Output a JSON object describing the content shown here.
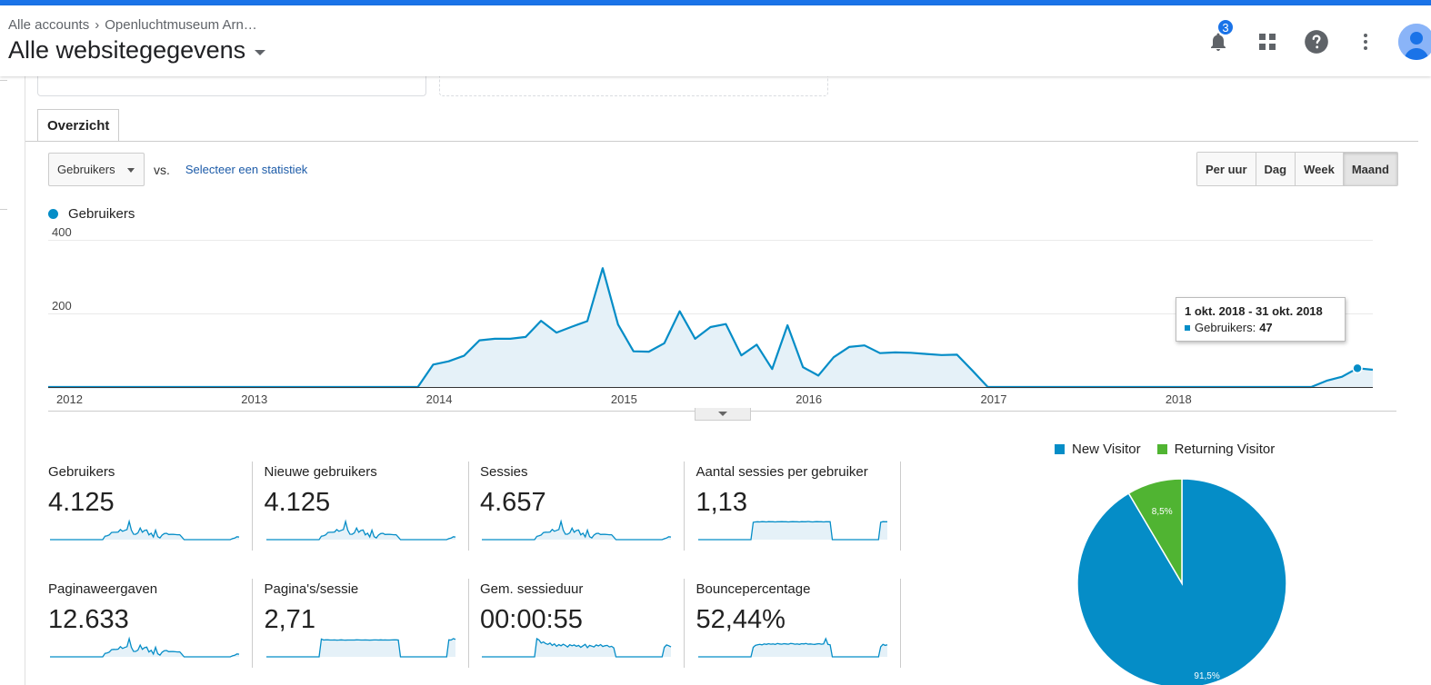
{
  "header": {
    "breadcrumb": [
      "Alle accounts",
      "Openluchtmuseum Arn…"
    ],
    "breadcrumb_sep": "›",
    "view_title": "Alle websitegegevens",
    "notifications_count": "3",
    "icons": [
      "bell-icon",
      "apps-grid-icon",
      "help-icon",
      "more-vert-icon",
      "avatar"
    ]
  },
  "tabs": [
    {
      "label": "Overzicht",
      "active": true
    }
  ],
  "controls": {
    "metric_select": "Gebruikers",
    "vs_label": "vs.",
    "select_metric_link": "Selecteer een statistiek",
    "granularity": [
      {
        "label": "Per uur",
        "active": false
      },
      {
        "label": "Dag",
        "active": false
      },
      {
        "label": "Week",
        "active": false
      },
      {
        "label": "Maand",
        "active": true
      }
    ]
  },
  "chart_data": [
    {
      "type": "area",
      "series": [
        {
          "name": "Gebruikers",
          "color": "#058dc7",
          "values": [
            0,
            0,
            0,
            0,
            0,
            0,
            0,
            0,
            0,
            0,
            0,
            0,
            0,
            0,
            0,
            0,
            0,
            0,
            0,
            0,
            0,
            0,
            0,
            0,
            0,
            61,
            70,
            85,
            127,
            131,
            131,
            136,
            180,
            148,
            164,
            179,
            323,
            170,
            97,
            96,
            119,
            206,
            131,
            163,
            171,
            86,
            115,
            49,
            168,
            54,
            31,
            81,
            109,
            113,
            92,
            94,
            93,
            90,
            87,
            88,
            45,
            0,
            0,
            0,
            0,
            0,
            0,
            0,
            0,
            0,
            0,
            0,
            0,
            0,
            0,
            0,
            0,
            0,
            0,
            0,
            0,
            0,
            0,
            17,
            28,
            51,
            47
          ]
        }
      ],
      "x_start": "2012-01",
      "x_unit": "maand",
      "x_tick_labels": [
        "2012",
        "2013",
        "2014",
        "2015",
        "2016",
        "2017",
        "2018"
      ],
      "y_tick_labels": [
        "400",
        "200"
      ],
      "ylim": [
        0,
        400
      ],
      "legend": "Gebruikers",
      "tooltip": {
        "title": "1 okt. 2018 - 31 okt. 2018",
        "label": "Gebruikers:",
        "value": "47"
      }
    },
    {
      "type": "pie",
      "categories": [
        "New Visitor",
        "Returning Visitor"
      ],
      "values": [
        91.5,
        8.5
      ],
      "value_labels": [
        "91,5%",
        "8,5%"
      ],
      "colors": [
        "#058dc7",
        "#50b432"
      ],
      "legend": "top"
    }
  ],
  "kpis": [
    {
      "label": "Gebruikers",
      "value": "4.125",
      "trend": [
        0,
        0,
        0,
        0,
        0,
        0,
        0,
        0,
        0,
        0,
        0,
        0,
        0,
        0,
        0,
        0,
        0,
        0,
        0,
        0,
        0,
        0,
        0,
        0,
        0,
        61,
        70,
        85,
        127,
        131,
        131,
        136,
        180,
        148,
        164,
        179,
        323,
        170,
        97,
        96,
        119,
        206,
        131,
        163,
        171,
        86,
        115,
        49,
        168,
        54,
        31,
        81,
        109,
        113,
        92,
        94,
        93,
        90,
        87,
        88,
        45,
        0,
        0,
        0,
        0,
        0,
        0,
        0,
        0,
        0,
        0,
        0,
        0,
        0,
        0,
        0,
        0,
        0,
        0,
        0,
        0,
        0,
        0,
        17,
        28,
        51,
        47
      ]
    },
    {
      "label": "Nieuwe gebruikers",
      "value": "4.125",
      "trend": [
        0,
        0,
        0,
        0,
        0,
        0,
        0,
        0,
        0,
        0,
        0,
        0,
        0,
        0,
        0,
        0,
        0,
        0,
        0,
        0,
        0,
        0,
        0,
        0,
        0,
        61,
        70,
        85,
        127,
        131,
        131,
        136,
        180,
        148,
        164,
        179,
        323,
        170,
        97,
        96,
        119,
        206,
        131,
        163,
        171,
        86,
        115,
        49,
        168,
        54,
        31,
        81,
        109,
        113,
        92,
        94,
        93,
        90,
        87,
        88,
        45,
        0,
        0,
        0,
        0,
        0,
        0,
        0,
        0,
        0,
        0,
        0,
        0,
        0,
        0,
        0,
        0,
        0,
        0,
        0,
        0,
        0,
        0,
        17,
        28,
        51,
        47
      ]
    },
    {
      "label": "Sessies",
      "value": "4.657",
      "trend": [
        0,
        0,
        0,
        0,
        0,
        0,
        0,
        0,
        0,
        0,
        0,
        0,
        0,
        0,
        0,
        0,
        0,
        0,
        0,
        0,
        0,
        0,
        0,
        0,
        0,
        66,
        78,
        95,
        143,
        149,
        148,
        154,
        205,
        168,
        186,
        203,
        365,
        192,
        110,
        109,
        135,
        232,
        148,
        184,
        193,
        97,
        130,
        56,
        190,
        61,
        35,
        92,
        123,
        128,
        104,
        106,
        105,
        102,
        98,
        99,
        51,
        0,
        0,
        0,
        0,
        0,
        0,
        0,
        0,
        0,
        0,
        0,
        0,
        0,
        0,
        0,
        0,
        0,
        0,
        0,
        0,
        0,
        0,
        19,
        32,
        58,
        53
      ]
    },
    {
      "label": "Aantal sessies per gebruiker",
      "value": "1,13",
      "trend": [
        0,
        0,
        0,
        0,
        0,
        0,
        0,
        0,
        0,
        0,
        0,
        0,
        0,
        0,
        0,
        0,
        0,
        0,
        0,
        0,
        0,
        0,
        0,
        0,
        0,
        1.1,
        1.12,
        1.13,
        1.12,
        1.14,
        1.13,
        1.12,
        1.14,
        1.13,
        1.13,
        1.12,
        1.13,
        1.13,
        1.14,
        1.13,
        1.13,
        1.12,
        1.13,
        1.14,
        1.13,
        1.13,
        1.12,
        1.14,
        1.13,
        1.13,
        1.15,
        1.13,
        1.12,
        1.13,
        1.14,
        1.13,
        1.13,
        1.12,
        1.13,
        1.13,
        1.13,
        0,
        0,
        0,
        0,
        0,
        0,
        0,
        0,
        0,
        0,
        0,
        0,
        0,
        0,
        0,
        0,
        0,
        0,
        0,
        0,
        0,
        0,
        1.1,
        1.14,
        1.13,
        1.13
      ]
    },
    {
      "label": "Paginaweergaven",
      "value": "12.633",
      "trend": [
        0,
        0,
        0,
        0,
        0,
        0,
        0,
        0,
        0,
        0,
        0,
        0,
        0,
        0,
        0,
        0,
        0,
        0,
        0,
        0,
        0,
        0,
        0,
        0,
        0,
        175,
        195,
        240,
        360,
        372,
        370,
        385,
        510,
        420,
        470,
        508,
        910,
        480,
        275,
        272,
        338,
        585,
        372,
        460,
        485,
        244,
        326,
        139,
        476,
        153,
        88,
        230,
        310,
        320,
        261,
        266,
        264,
        256,
        247,
        250,
        128,
        0,
        0,
        0,
        0,
        0,
        0,
        0,
        0,
        0,
        0,
        0,
        0,
        0,
        0,
        0,
        0,
        0,
        0,
        0,
        0,
        0,
        0,
        48,
        79,
        145,
        133
      ]
    },
    {
      "label": "Pagina's/sessie",
      "value": "2,71",
      "trend": [
        0,
        0,
        0,
        0,
        0,
        0,
        0,
        0,
        0,
        0,
        0,
        0,
        0,
        0,
        0,
        0,
        0,
        0,
        0,
        0,
        0,
        0,
        0,
        0,
        0,
        2.65,
        2.5,
        2.52,
        2.52,
        2.5,
        2.5,
        2.51,
        2.49,
        2.5,
        2.52,
        2.5,
        2.49,
        2.5,
        2.5,
        2.5,
        2.5,
        2.52,
        2.51,
        2.5,
        2.5,
        2.51,
        2.5,
        2.48,
        2.5,
        2.51,
        2.51,
        2.5,
        2.52,
        2.5,
        2.51,
        2.5,
        2.5,
        2.51,
        2.52,
        2.53,
        2.5,
        0,
        0,
        0,
        0,
        0,
        0,
        0,
        0,
        0,
        0,
        0,
        0,
        0,
        0,
        0,
        0,
        0,
        0,
        0,
        0,
        0,
        0,
        2.52,
        2.5,
        2.7,
        2.6
      ]
    },
    {
      "label": "Gem. sessieduur",
      "value": "00:00:55",
      "trend": [
        0,
        0,
        0,
        0,
        0,
        0,
        0,
        0,
        0,
        0,
        0,
        0,
        0,
        0,
        0,
        0,
        0,
        0,
        0,
        0,
        0,
        0,
        0,
        0,
        0,
        95,
        88,
        72,
        78,
        70,
        65,
        72,
        60,
        68,
        55,
        64,
        58,
        66,
        60,
        52,
        63,
        58,
        62,
        55,
        60,
        50,
        58,
        65,
        48,
        60,
        56,
        52,
        62,
        57,
        64,
        54,
        58,
        60,
        52,
        55,
        47,
        0,
        0,
        0,
        0,
        0,
        0,
        0,
        0,
        0,
        0,
        0,
        0,
        0,
        0,
        0,
        0,
        0,
        0,
        0,
        0,
        0,
        0,
        50,
        62,
        58,
        52
      ]
    },
    {
      "label": "Bouncepercentage",
      "value": "52,44%",
      "trend": [
        0,
        0,
        0,
        0,
        0,
        0,
        0,
        0,
        0,
        0,
        0,
        0,
        0,
        0,
        0,
        0,
        0,
        0,
        0,
        0,
        0,
        0,
        0,
        0,
        0,
        40,
        48,
        50,
        52,
        50,
        54,
        52,
        55,
        53,
        54,
        52,
        56,
        54,
        53,
        55,
        54,
        53,
        56,
        55,
        53,
        54,
        52,
        55,
        54,
        56,
        53,
        54,
        53,
        52,
        54,
        55,
        53,
        54,
        76,
        52,
        50,
        0,
        0,
        0,
        0,
        0,
        0,
        0,
        0,
        0,
        0,
        0,
        0,
        0,
        0,
        0,
        0,
        0,
        0,
        0,
        0,
        0,
        0,
        42,
        52,
        48,
        50
      ]
    }
  ]
}
